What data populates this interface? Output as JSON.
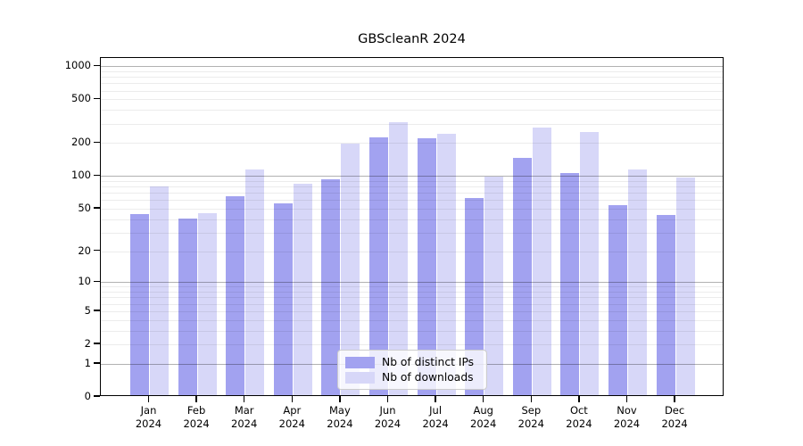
{
  "chart_data": {
    "type": "bar",
    "title": "GBScleanR 2024",
    "categories": [
      "Jan",
      "Feb",
      "Mar",
      "Apr",
      "May",
      "Jun",
      "Jul",
      "Aug",
      "Sep",
      "Oct",
      "Nov",
      "Dec"
    ],
    "category_year_label": "2024",
    "series": [
      {
        "name": "Nb of distinct IPs",
        "color": "#a2a2f0",
        "values": [
          43,
          39,
          63,
          54,
          90,
          216,
          214,
          61,
          141,
          103,
          52,
          42
        ]
      },
      {
        "name": "Nb of downloads",
        "color": "#d7d7f8",
        "values": [
          78,
          44,
          111,
          82,
          192,
          297,
          234,
          95,
          266,
          244,
          110,
          93
        ]
      }
    ],
    "yticks": [
      0,
      1,
      2,
      5,
      10,
      20,
      50,
      100,
      200,
      500,
      1000
    ],
    "ylim": [
      0,
      1190
    ],
    "yscale": "log1p",
    "grid": true,
    "grid_minor_multiples": [
      1,
      2,
      3,
      4,
      5,
      6,
      7,
      8,
      9
    ],
    "legend_position": "bottom-center-inside",
    "xlabel": "",
    "ylabel": ""
  }
}
